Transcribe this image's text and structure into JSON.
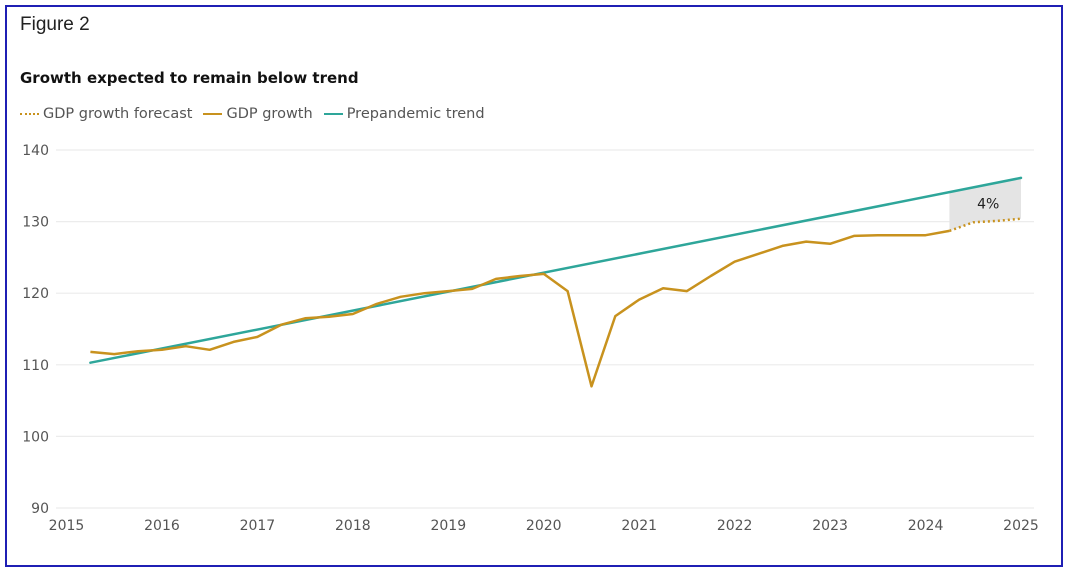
{
  "figure_label": "Figure 2",
  "colors": {
    "forecast": "#c8921e",
    "gdp": "#c8921e",
    "trend": "#2ea69a",
    "gap_fill": "#e4e4e4",
    "grid": "#ececec",
    "frame": "#1f1fb4"
  },
  "chart_data": {
    "type": "line",
    "title": "Growth expected to remain below trend",
    "xlabel": "",
    "ylabel": "",
    "xlim": [
      2015,
      2025
    ],
    "ylim": [
      90,
      140
    ],
    "yticks": [
      90,
      100,
      110,
      120,
      130,
      140
    ],
    "xticks": [
      2015,
      2016,
      2017,
      2018,
      2019,
      2020,
      2021,
      2022,
      2023,
      2024,
      2025
    ],
    "grid": true,
    "legend_position": "top-left",
    "legend": [
      "GDP growth forecast",
      "GDP growth",
      "Prepandemic trend"
    ],
    "series": [
      {
        "name": "GDP growth",
        "style": "solid",
        "x": [
          2015.25,
          2015.5,
          2015.75,
          2016.0,
          2016.25,
          2016.5,
          2016.75,
          2017.0,
          2017.25,
          2017.5,
          2017.75,
          2018.0,
          2018.25,
          2018.5,
          2018.75,
          2019.0,
          2019.25,
          2019.5,
          2019.75,
          2020.0,
          2020.25,
          2020.5,
          2020.75,
          2021.0,
          2021.25,
          2021.5,
          2021.75,
          2022.0,
          2022.25,
          2022.5,
          2022.75,
          2023.0,
          2023.25,
          2023.5,
          2023.75,
          2024.0,
          2024.25
        ],
        "values": [
          111.8,
          111.5,
          111.9,
          112.1,
          112.6,
          112.1,
          113.2,
          113.9,
          115.6,
          116.5,
          116.7,
          117.1,
          118.5,
          119.5,
          120.0,
          120.3,
          120.6,
          122.0,
          122.4,
          122.7,
          120.3,
          107.0,
          116.8,
          119.1,
          120.7,
          120.3,
          122.4,
          124.4,
          125.5,
          126.6,
          127.2,
          126.9,
          128.0,
          128.1,
          128.1,
          128.1,
          128.7
        ]
      },
      {
        "name": "GDP growth forecast",
        "style": "dotted",
        "x": [
          2024.25,
          2024.5,
          2024.75,
          2025.0
        ],
        "values": [
          128.7,
          129.9,
          130.1,
          130.4
        ]
      },
      {
        "name": "Prepandemic trend",
        "style": "solid",
        "x": [
          2015.25,
          2025.0
        ],
        "values": [
          110.3,
          136.1
        ]
      }
    ],
    "annotations": [
      {
        "text": "4%",
        "type": "shaded-gap",
        "x_range": [
          2024.25,
          2025.0
        ],
        "between": [
          "Prepandemic trend",
          "GDP growth forecast"
        ]
      }
    ]
  }
}
